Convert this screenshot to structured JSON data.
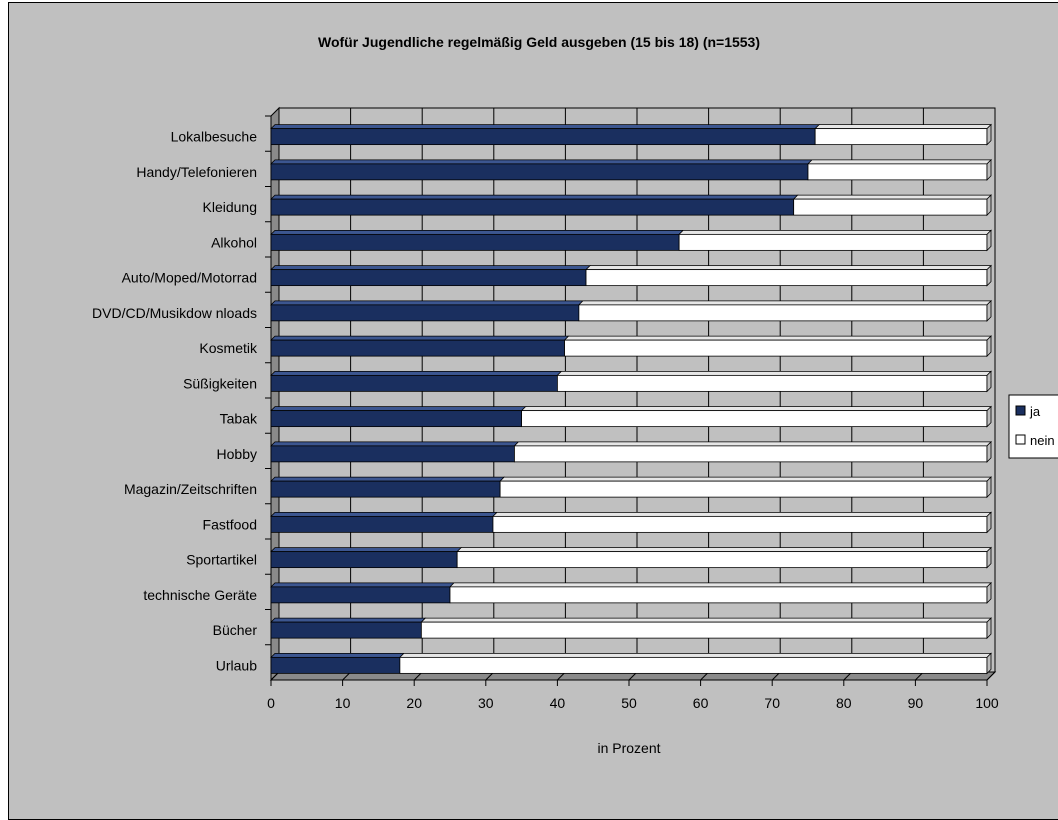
{
  "chart_data": {
    "type": "bar",
    "orientation": "horizontal",
    "stacked": true,
    "three_d": true,
    "title": "Wofür Jugendliche regelmäßig Geld ausgeben (15 bis 18) (n=1553)",
    "xlabel": "in Prozent",
    "ylabel": "",
    "xlim": [
      0,
      100
    ],
    "xticks": [
      "0",
      "10",
      "20",
      "30",
      "40",
      "50",
      "60",
      "70",
      "80",
      "90",
      "100"
    ],
    "grid": true,
    "legend_position": "right",
    "categories": [
      "Lokalbesuche",
      "Handy/Telefonieren",
      "Kleidung",
      "Alkohol",
      "Auto/Moped/Motorrad",
      "DVD/CD/Musikdow nloads",
      "Kosmetik",
      "Süßigkeiten",
      "Tabak",
      "Hobby",
      "Magazin/Zeitschriften",
      "Fastfood",
      "Sportartikel",
      "technische Geräte",
      "Bücher",
      "Urlaub"
    ],
    "series": [
      {
        "name": "ja",
        "color": "#1a2f5f",
        "values": [
          76,
          75,
          73,
          57,
          44,
          43,
          41,
          40,
          35,
          34,
          32,
          31,
          26,
          25,
          21,
          18
        ]
      },
      {
        "name": "nein",
        "color": "#ffffff",
        "values": [
          24,
          25,
          27,
          43,
          56,
          57,
          59,
          60,
          65,
          66,
          68,
          69,
          74,
          75,
          79,
          82
        ]
      }
    ],
    "legend_labels": [
      "ja",
      "nein"
    ]
  }
}
